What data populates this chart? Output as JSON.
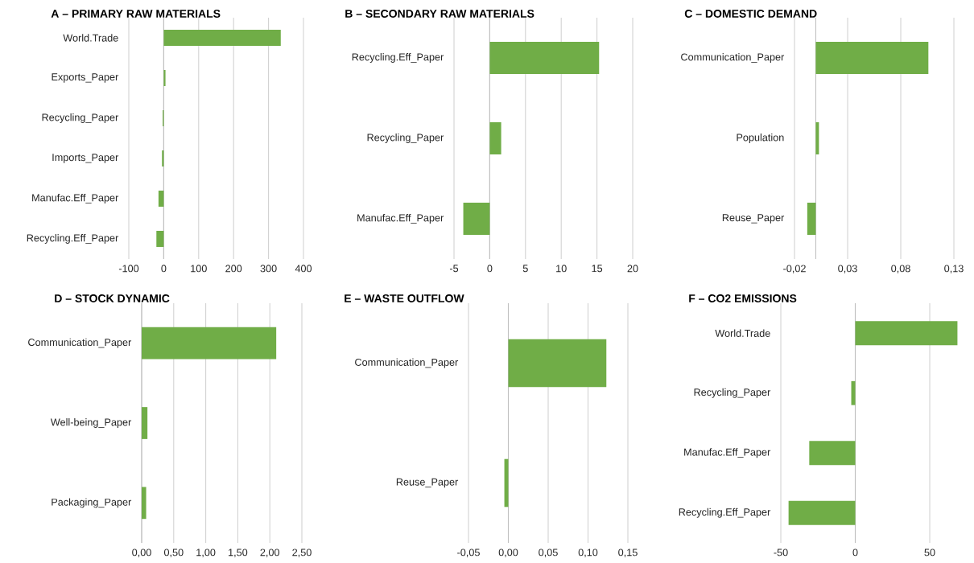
{
  "chart_data": [
    {
      "type": "bar",
      "orientation": "horizontal",
      "title": "A – PRIMARY  RAW MATERIALS",
      "categories": [
        "World.Trade",
        "Exports_Paper",
        "Recycling_Paper",
        "Imports_Paper",
        "Manufac.Eff_Paper",
        "Recycling.Eff_Paper"
      ],
      "values": [
        335,
        5,
        -3,
        -5,
        -15,
        -21
      ],
      "color": "#70ad47",
      "xlim": [
        -100,
        400
      ],
      "xticks": [
        -100,
        0,
        100,
        200,
        300,
        400
      ],
      "grid": "x"
    },
    {
      "type": "bar",
      "orientation": "horizontal",
      "title": "B – SECONDARY  RAW MATERIALS",
      "categories": [
        "Recycling.Eff_Paper",
        "Recycling_Paper",
        "Manufac.Eff_Paper"
      ],
      "values": [
        15.3,
        1.6,
        -3.7
      ],
      "color": "#70ad47",
      "xlim": [
        -5,
        20
      ],
      "xticks": [
        -5,
        0,
        5,
        10,
        15,
        20
      ],
      "grid": "x"
    },
    {
      "type": "bar",
      "orientation": "horizontal",
      "title": "C – DOMESTIC  DEMAND",
      "categories": [
        "Communication_Paper",
        "Population",
        "Reuse_Paper"
      ],
      "values": [
        0.106,
        0.003,
        -0.008
      ],
      "color": "#70ad47",
      "xlim": [
        -0.02,
        0.13
      ],
      "xticks": [
        {
          "value": -0.02,
          "label": "-0,02"
        },
        {
          "value": 0.03,
          "label": "0,03"
        },
        {
          "value": 0.08,
          "label": "0,08"
        },
        {
          "value": 0.13,
          "label": "0,13"
        }
      ],
      "grid": "x"
    },
    {
      "type": "bar",
      "orientation": "horizontal",
      "title": "D – STOCK DYNAMIC",
      "categories": [
        "Communication_Paper",
        "Well-being_Paper",
        "Packaging_Paper"
      ],
      "values": [
        2.1,
        0.09,
        0.07
      ],
      "color": "#70ad47",
      "xlim": [
        0,
        2.5
      ],
      "xticks": [
        {
          "value": 0,
          "label": "0,00"
        },
        {
          "value": 0.5,
          "label": "0,50"
        },
        {
          "value": 1,
          "label": "1,00"
        },
        {
          "value": 1.5,
          "label": "1,50"
        },
        {
          "value": 2,
          "label": "2,00"
        },
        {
          "value": 2.5,
          "label": "2,50"
        }
      ],
      "grid": "x"
    },
    {
      "type": "bar",
      "orientation": "horizontal",
      "title": "E – WASTE OUTFLOW",
      "categories": [
        "Communication_Paper",
        "Reuse_Paper"
      ],
      "values": [
        0.123,
        -0.005
      ],
      "color": "#70ad47",
      "xlim": [
        -0.05,
        0.15
      ],
      "xticks": [
        {
          "value": -0.05,
          "label": "-0,05"
        },
        {
          "value": 0,
          "label": "0,00"
        },
        {
          "value": 0.05,
          "label": "0,05"
        },
        {
          "value": 0.1,
          "label": "0,10"
        },
        {
          "value": 0.15,
          "label": "0,15"
        }
      ],
      "grid": "x"
    },
    {
      "type": "bar",
      "orientation": "horizontal",
      "title": "F – CO2 EMISSIONS",
      "categories": [
        "World.Trade",
        "Recycling_Paper",
        "Manufac.Eff_Paper",
        "Recycling.Eff_Paper"
      ],
      "values": [
        68.6,
        -2.7,
        -30.9,
        -44.8
      ],
      "color": "#70ad47",
      "xlim": [
        -50,
        70
      ],
      "xticks": [
        -50,
        0,
        50
      ],
      "grid": "x"
    }
  ]
}
